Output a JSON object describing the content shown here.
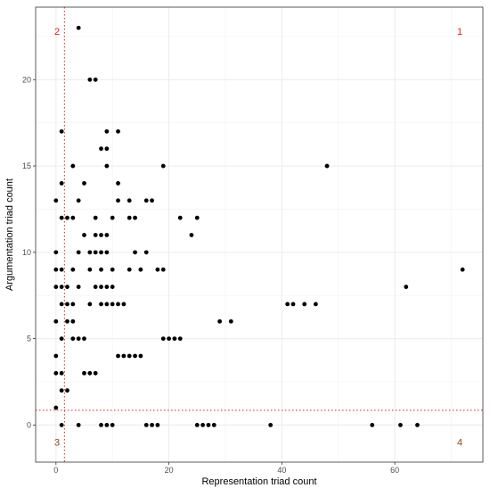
{
  "chart_data": {
    "type": "scatter",
    "xlabel": "Representation triad count",
    "ylabel": "Argumentation triad count",
    "xlim": [
      -3.6,
      75.6
    ],
    "ylim": [
      -2.15,
      24.2
    ],
    "x_ticks": [
      0,
      20,
      40,
      60
    ],
    "y_ticks": [
      0,
      5,
      10,
      15,
      20
    ],
    "grid": true,
    "point_color": "#000000",
    "threshold_color": "#e41a1c",
    "thresholds": {
      "x": 1.5,
      "y": 0.85
    },
    "quadrant_labels": [
      {
        "text": "1",
        "x": 71.5,
        "y": 22.8,
        "color": "#e41a1c"
      },
      {
        "text": "2",
        "x": 0.2,
        "y": 22.8,
        "color": "#e41a1c"
      },
      {
        "text": "3",
        "x": 0.2,
        "y": -1.0,
        "color": "#8b4513"
      },
      {
        "text": "4",
        "x": 71.5,
        "y": -1.0,
        "color": "#8b4513"
      }
    ],
    "points": [
      {
        "x": 4,
        "y": 23
      },
      {
        "x": 6,
        "y": 20
      },
      {
        "x": 7,
        "y": 20
      },
      {
        "x": 9,
        "y": 17
      },
      {
        "x": 11,
        "y": 17
      },
      {
        "x": 1,
        "y": 17
      },
      {
        "x": 8,
        "y": 16
      },
      {
        "x": 9,
        "y": 16
      },
      {
        "x": 3,
        "y": 15
      },
      {
        "x": 9,
        "y": 15
      },
      {
        "x": 19,
        "y": 15
      },
      {
        "x": 48,
        "y": 15
      },
      {
        "x": 1,
        "y": 14
      },
      {
        "x": 5,
        "y": 14
      },
      {
        "x": 11,
        "y": 14
      },
      {
        "x": 0,
        "y": 13
      },
      {
        "x": 4,
        "y": 13
      },
      {
        "x": 11,
        "y": 13
      },
      {
        "x": 13,
        "y": 13
      },
      {
        "x": 16,
        "y": 13
      },
      {
        "x": 17,
        "y": 13
      },
      {
        "x": 1,
        "y": 12
      },
      {
        "x": 2,
        "y": 12
      },
      {
        "x": 3,
        "y": 12
      },
      {
        "x": 7,
        "y": 12
      },
      {
        "x": 10,
        "y": 12
      },
      {
        "x": 13,
        "y": 12
      },
      {
        "x": 14,
        "y": 12
      },
      {
        "x": 22,
        "y": 12
      },
      {
        "x": 25,
        "y": 12
      },
      {
        "x": 5,
        "y": 11
      },
      {
        "x": 7,
        "y": 11
      },
      {
        "x": 8,
        "y": 11
      },
      {
        "x": 9,
        "y": 11
      },
      {
        "x": 24,
        "y": 11
      },
      {
        "x": 0,
        "y": 10
      },
      {
        "x": 4,
        "y": 10
      },
      {
        "x": 6,
        "y": 10
      },
      {
        "x": 7,
        "y": 10
      },
      {
        "x": 8,
        "y": 10
      },
      {
        "x": 9,
        "y": 10
      },
      {
        "x": 14,
        "y": 10
      },
      {
        "x": 16,
        "y": 10
      },
      {
        "x": 0,
        "y": 9
      },
      {
        "x": 1,
        "y": 9
      },
      {
        "x": 3,
        "y": 9
      },
      {
        "x": 6,
        "y": 9
      },
      {
        "x": 8,
        "y": 9
      },
      {
        "x": 10,
        "y": 9
      },
      {
        "x": 13,
        "y": 9
      },
      {
        "x": 15,
        "y": 9
      },
      {
        "x": 18,
        "y": 9
      },
      {
        "x": 19,
        "y": 9
      },
      {
        "x": 72,
        "y": 9
      },
      {
        "x": 0,
        "y": 8
      },
      {
        "x": 1,
        "y": 8
      },
      {
        "x": 2,
        "y": 8
      },
      {
        "x": 4,
        "y": 8
      },
      {
        "x": 7,
        "y": 8
      },
      {
        "x": 8,
        "y": 8
      },
      {
        "x": 9,
        "y": 8
      },
      {
        "x": 10,
        "y": 8
      },
      {
        "x": 62,
        "y": 8
      },
      {
        "x": 1,
        "y": 7
      },
      {
        "x": 2,
        "y": 7
      },
      {
        "x": 3,
        "y": 7
      },
      {
        "x": 6,
        "y": 7
      },
      {
        "x": 8,
        "y": 7
      },
      {
        "x": 9,
        "y": 7
      },
      {
        "x": 10,
        "y": 7
      },
      {
        "x": 11,
        "y": 7
      },
      {
        "x": 12,
        "y": 7
      },
      {
        "x": 41,
        "y": 7
      },
      {
        "x": 42,
        "y": 7
      },
      {
        "x": 44,
        "y": 7
      },
      {
        "x": 46,
        "y": 7
      },
      {
        "x": 0,
        "y": 6
      },
      {
        "x": 2,
        "y": 6
      },
      {
        "x": 3,
        "y": 6
      },
      {
        "x": 29,
        "y": 6
      },
      {
        "x": 31,
        "y": 6
      },
      {
        "x": 1,
        "y": 5
      },
      {
        "x": 3,
        "y": 5
      },
      {
        "x": 4,
        "y": 5
      },
      {
        "x": 5,
        "y": 5
      },
      {
        "x": 19,
        "y": 5
      },
      {
        "x": 20,
        "y": 5
      },
      {
        "x": 21,
        "y": 5
      },
      {
        "x": 22,
        "y": 5
      },
      {
        "x": 0,
        "y": 4
      },
      {
        "x": 11,
        "y": 4
      },
      {
        "x": 12,
        "y": 4
      },
      {
        "x": 13,
        "y": 4
      },
      {
        "x": 14,
        "y": 4
      },
      {
        "x": 15,
        "y": 4
      },
      {
        "x": 0,
        "y": 3
      },
      {
        "x": 1,
        "y": 3
      },
      {
        "x": 5,
        "y": 3
      },
      {
        "x": 6,
        "y": 3
      },
      {
        "x": 7,
        "y": 3
      },
      {
        "x": 1,
        "y": 2
      },
      {
        "x": 2,
        "y": 2
      },
      {
        "x": 0,
        "y": 1
      },
      {
        "x": 1,
        "y": 0
      },
      {
        "x": 4,
        "y": 0
      },
      {
        "x": 8,
        "y": 0
      },
      {
        "x": 9,
        "y": 0
      },
      {
        "x": 10,
        "y": 0
      },
      {
        "x": 16,
        "y": 0
      },
      {
        "x": 17,
        "y": 0
      },
      {
        "x": 18,
        "y": 0
      },
      {
        "x": 25,
        "y": 0
      },
      {
        "x": 26,
        "y": 0
      },
      {
        "x": 27,
        "y": 0
      },
      {
        "x": 28,
        "y": 0
      },
      {
        "x": 38,
        "y": 0
      },
      {
        "x": 56,
        "y": 0
      },
      {
        "x": 61,
        "y": 0
      },
      {
        "x": 64,
        "y": 0
      }
    ]
  }
}
